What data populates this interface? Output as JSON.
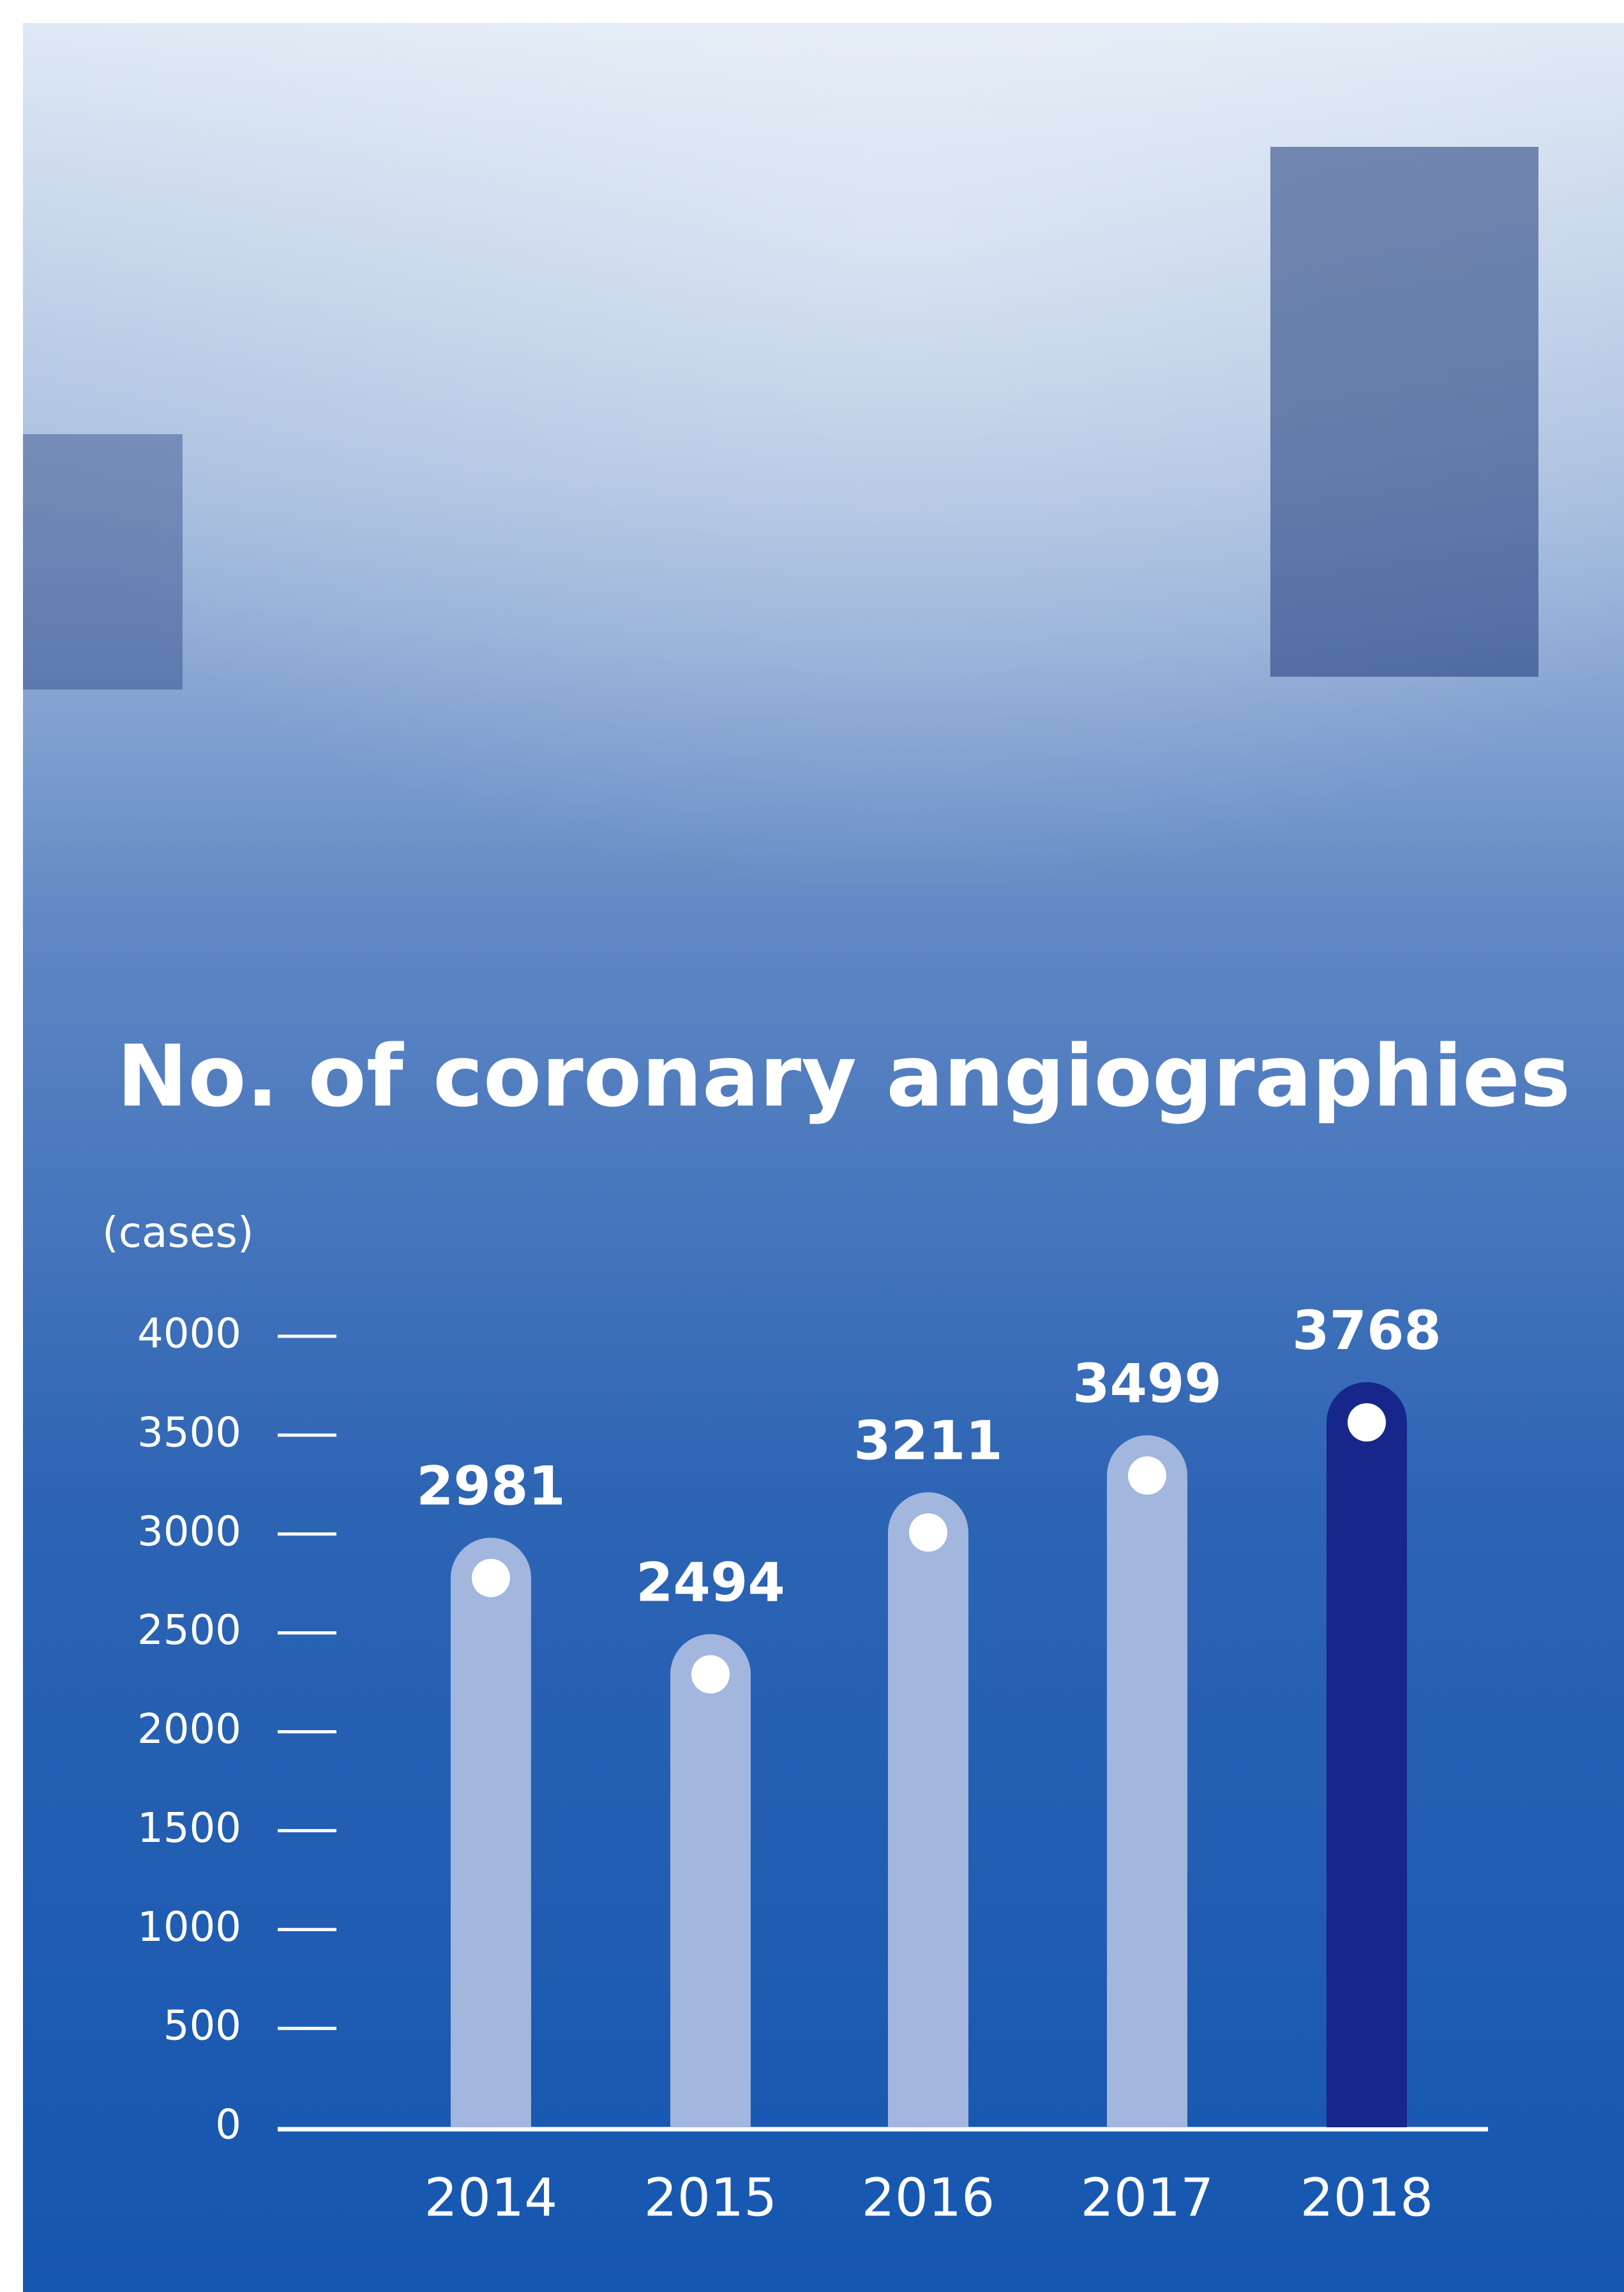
{
  "chart_data": {
    "type": "bar",
    "title": "No. of coronary angiographies",
    "y_label": "(cases)",
    "categories": [
      "2014",
      "2015",
      "2016",
      "2017",
      "2018"
    ],
    "values": [
      2981,
      2494,
      3211,
      3499,
      3768
    ],
    "colors": [
      "#a2b6de",
      "#a2b6de",
      "#a2b6de",
      "#a2b6de",
      "#16268a"
    ],
    "ylim": [
      0,
      4000
    ],
    "yticks": [
      0,
      500,
      1000,
      1500,
      2000,
      2500,
      3000,
      3500,
      4000
    ]
  }
}
